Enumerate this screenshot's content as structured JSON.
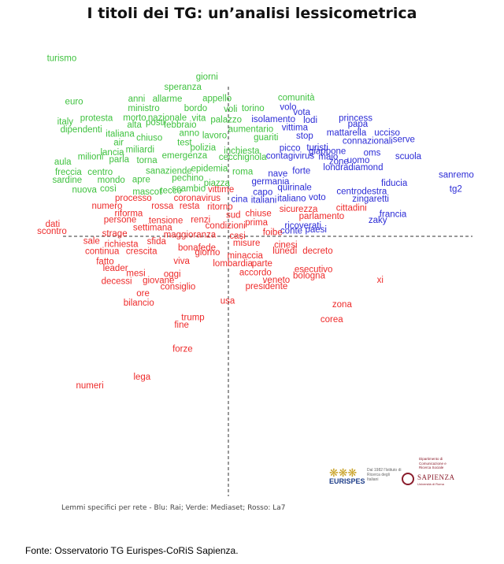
{
  "title": "I titoli dei TG: un’analisi lessicometrica",
  "note": "Lemmi specifici per rete - Blu: Rai; Verde: Mediaset; Rosso: La7",
  "source": "Fonte: Osservatorio TG Eurispes-CoRiS Sapienza.",
  "colors": {
    "Rai": "#2b2bd6",
    "Mediaset": "#3fc23f",
    "La7": "#ee2a2a",
    "axis": "#333333"
  },
  "logos": {
    "eurispes": {
      "mark": "❋❋❋",
      "name": "EURISPES",
      "tagline": "Dal 1982 l'Istituto di Ricerca degli Italiani"
    },
    "sapienza": {
      "department": "Dipartimento di Comunicazione e Ricerca Sociale",
      "name": "SAPIENZA",
      "subtitle": "Università di Roma"
    }
  },
  "chart_data": {
    "type": "scatter",
    "title": "I titoli dei TG: un’analisi lessicometrica",
    "xlabel": "",
    "ylabel": "",
    "xlim": [
      -100,
      100
    ],
    "ylim": [
      -100,
      100
    ],
    "axes": "crossing dashed lines at origin",
    "grid": false,
    "series": [
      {
        "name": "Mediaset",
        "color": "#3fc23f",
        "points": [
          {
            "label": "turismo",
            "x": -67.7,
            "y": 83.6
          },
          {
            "label": "giorni",
            "x": -8.7,
            "y": 74.8
          },
          {
            "label": "speranza",
            "x": -18.5,
            "y": 69.9
          },
          {
            "label": "comunità",
            "x": 27.6,
            "y": 64.9
          },
          {
            "label": "euro",
            "x": -62.7,
            "y": 62.9
          },
          {
            "label": "anni",
            "x": -37.3,
            "y": 64.3
          },
          {
            "label": "allarme",
            "x": -24.8,
            "y": 64.2
          },
          {
            "label": "appello",
            "x": -4.6,
            "y": 64.4
          },
          {
            "label": "ministro",
            "x": -34.4,
            "y": 59.8
          },
          {
            "label": "bordo",
            "x": -13.3,
            "y": 59.7
          },
          {
            "label": "voli",
            "x": 0.9,
            "y": 59.4
          },
          {
            "label": "torino",
            "x": 10.0,
            "y": 59.7
          },
          {
            "label": "protesta",
            "x": -53.6,
            "y": 55.1
          },
          {
            "label": "morto",
            "x": -38.1,
            "y": 55.3
          },
          {
            "label": "nazionale",
            "x": -24.8,
            "y": 55.2
          },
          {
            "label": "vita",
            "x": -12.0,
            "y": 55.0
          },
          {
            "label": "palazzo",
            "x": -0.9,
            "y": 54.3
          },
          {
            "label": "italy",
            "x": -66.3,
            "y": 53.4
          },
          {
            "label": "alta",
            "x": -38.2,
            "y": 51.8
          },
          {
            "label": "posti",
            "x": -29.7,
            "y": 53.0
          },
          {
            "label": "febbraio",
            "x": -19.6,
            "y": 51.8
          },
          {
            "label": "aumentario",
            "x": 9.1,
            "y": 49.9
          },
          {
            "label": "dipendenti",
            "x": -59.8,
            "y": 49.6
          },
          {
            "label": "italiana",
            "x": -44.0,
            "y": 47.5
          },
          {
            "label": "chiuso",
            "x": -32.1,
            "y": 45.6
          },
          {
            "label": "anno",
            "x": -15.9,
            "y": 47.9
          },
          {
            "label": "lavoro",
            "x": -5.6,
            "y": 46.8
          },
          {
            "label": "guariti",
            "x": 15.3,
            "y": 45.8
          },
          {
            "label": "air",
            "x": -44.6,
            "y": 43.5
          },
          {
            "label": "test",
            "x": -17.8,
            "y": 43.5
          },
          {
            "label": "lancia",
            "x": -47.2,
            "y": 38.8
          },
          {
            "label": "miliardi",
            "x": -35.9,
            "y": 40.0
          },
          {
            "label": "polizia",
            "x": -10.3,
            "y": 41.0
          },
          {
            "label": "inchiesta",
            "x": 5.4,
            "y": 39.5
          },
          {
            "label": "milioni",
            "x": -56.0,
            "y": 36.7
          },
          {
            "label": "parla",
            "x": -44.4,
            "y": 35.4
          },
          {
            "label": "torna",
            "x": -33.1,
            "y": 35.0
          },
          {
            "label": "emergenza",
            "x": -17.8,
            "y": 37.2
          },
          {
            "label": "cecchignola",
            "x": 5.8,
            "y": 36.4
          },
          {
            "label": "aula",
            "x": -67.3,
            "y": 34.3
          },
          {
            "label": "epidemia",
            "x": -7.7,
            "y": 31.1
          },
          {
            "label": "freccia",
            "x": -65.0,
            "y": 29.3
          },
          {
            "label": "centro",
            "x": -52.1,
            "y": 29.4
          },
          {
            "label": "sanaziende",
            "x": -24.2,
            "y": 29.9
          },
          {
            "label": "roma",
            "x": 5.8,
            "y": 29.5
          },
          {
            "label": "sardine",
            "x": -65.5,
            "y": 25.6
          },
          {
            "label": "mondo",
            "x": -47.6,
            "y": 25.6
          },
          {
            "label": "apre",
            "x": -35.4,
            "y": 25.7
          },
          {
            "label": "pechino",
            "x": -16.5,
            "y": 26.5
          },
          {
            "label": "piazza",
            "x": -4.7,
            "y": 24.0
          },
          {
            "label": "nuova",
            "x": -58.5,
            "y": 20.9
          },
          {
            "label": "così",
            "x": -48.8,
            "y": 21.5
          },
          {
            "label": "scambio",
            "x": -16.1,
            "y": 21.4
          },
          {
            "label": "mascot",
            "x": -33.0,
            "y": 20.0
          },
          {
            "label": "tecco",
            "x": -23.3,
            "y": 20.5
          }
        ]
      },
      {
        "name": "Rai",
        "color": "#2b2bd6",
        "points": [
          {
            "label": "volo",
            "x": 24.3,
            "y": 60.4
          },
          {
            "label": "vota",
            "x": 29.8,
            "y": 57.9
          },
          {
            "label": "isolamento",
            "x": 18.3,
            "y": 54.5
          },
          {
            "label": "lodi",
            "x": 33.3,
            "y": 54.1
          },
          {
            "label": "princess",
            "x": 51.7,
            "y": 55.1
          },
          {
            "label": "papa",
            "x": 52.6,
            "y": 52.2
          },
          {
            "label": "vittima",
            "x": 27.0,
            "y": 50.5
          },
          {
            "label": "stop",
            "x": 31.0,
            "y": 46.6
          },
          {
            "label": "mattarella",
            "x": 48.0,
            "y": 48.2
          },
          {
            "label": "ucciso",
            "x": 64.5,
            "y": 48.2
          },
          {
            "label": "connazionali",
            "x": 56.6,
            "y": 44.2
          },
          {
            "label": "serve",
            "x": 71.3,
            "y": 44.9
          },
          {
            "label": "picco",
            "x": 25.0,
            "y": 40.7
          },
          {
            "label": "turisti",
            "x": 36.2,
            "y": 41.0
          },
          {
            "label": "giappone",
            "x": 40.2,
            "y": 39.2
          },
          {
            "label": "contagivirus",
            "x": 25.1,
            "y": 37.0
          },
          {
            "label": "maio",
            "x": 40.6,
            "y": 36.6
          },
          {
            "label": "oms",
            "x": 58.4,
            "y": 38.6
          },
          {
            "label": "scuola",
            "x": 73.1,
            "y": 36.9
          },
          {
            "label": "zone",
            "x": 44.9,
            "y": 34.4
          },
          {
            "label": "uomo",
            "x": 52.8,
            "y": 34.9
          },
          {
            "label": "londradiamond",
            "x": 50.7,
            "y": 31.5
          },
          {
            "label": "nave",
            "x": 20.1,
            "y": 28.6
          },
          {
            "label": "forte",
            "x": 29.7,
            "y": 29.8
          },
          {
            "label": "germania",
            "x": 17.1,
            "y": 24.9
          },
          {
            "label": "centrodestra",
            "x": 54.2,
            "y": 20.1
          },
          {
            "label": "fiducia",
            "x": 67.4,
            "y": 24.0
          },
          {
            "label": "sanremo",
            "x": 92.6,
            "y": 28.0
          },
          {
            "label": "tg2",
            "x": 92.4,
            "y": 21.2
          },
          {
            "label": "quirinale",
            "x": 26.9,
            "y": 21.9
          },
          {
            "label": "capo",
            "x": 14.0,
            "y": 19.8
          },
          {
            "label": "voto",
            "x": 36.1,
            "y": 17.3
          },
          {
            "label": "zingaretti",
            "x": 57.8,
            "y": 16.6
          },
          {
            "label": "cina",
            "x": 4.5,
            "y": 16.3
          },
          {
            "label": "italiani",
            "x": 14.4,
            "y": 15.9
          },
          {
            "label": "italiano",
            "x": 25.7,
            "y": 16.8
          },
          {
            "label": "francia",
            "x": 66.9,
            "y": 9.3
          },
          {
            "label": "zaky",
            "x": 60.7,
            "y": 6.3
          },
          {
            "label": "ricoverati",
            "x": 30.3,
            "y": 3.7
          },
          {
            "label": "conte",
            "x": 25.6,
            "y": 1.3
          },
          {
            "label": "paesi",
            "x": 35.6,
            "y": 1.9
          }
        ]
      },
      {
        "name": "La7",
        "color": "#ee2a2a",
        "points": [
          {
            "label": "vittime",
            "x": -3.0,
            "y": 21.1
          },
          {
            "label": "processo",
            "x": -38.6,
            "y": 16.9
          },
          {
            "label": "coronavirus",
            "x": -12.7,
            "y": 16.9
          },
          {
            "label": "numero",
            "x": -49.3,
            "y": 13.2
          },
          {
            "label": "rossa",
            "x": -26.8,
            "y": 13.2
          },
          {
            "label": "resta",
            "x": -15.8,
            "y": 13.2
          },
          {
            "label": "ritorno",
            "x": -3.4,
            "y": 12.8
          },
          {
            "label": "sicurezza",
            "x": 28.5,
            "y": 11.6
          },
          {
            "label": "cittadini",
            "x": 50.0,
            "y": 12.3
          },
          {
            "label": "riforma",
            "x": -40.5,
            "y": 9.5
          },
          {
            "label": "chiuse",
            "x": 12.2,
            "y": 9.5
          },
          {
            "label": "sud",
            "x": 2.0,
            "y": 8.8
          },
          {
            "label": "parlamento",
            "x": 37.9,
            "y": 8.2
          },
          {
            "label": "persone",
            "x": -44.0,
            "y": 6.5
          },
          {
            "label": "tensione",
            "x": -25.4,
            "y": 6.2
          },
          {
            "label": "renzi",
            "x": -11.3,
            "y": 6.6
          },
          {
            "label": "prima",
            "x": 11.4,
            "y": 5.3
          },
          {
            "label": "dati",
            "x": -71.4,
            "y": 4.6
          },
          {
            "label": "condizioni",
            "x": -1.2,
            "y": 3.8
          },
          {
            "label": "settimana",
            "x": -30.8,
            "y": 2.8
          },
          {
            "label": "scontro",
            "x": -71.7,
            "y": 1.1
          },
          {
            "label": "strage",
            "x": -46.2,
            "y": 0.0
          },
          {
            "label": "maggioranza",
            "x": -15.7,
            "y": -0.6
          },
          {
            "label": "foibe",
            "x": 18.0,
            "y": 0.5
          },
          {
            "label": "casi",
            "x": 3.7,
            "y": -1.1
          },
          {
            "label": "sale",
            "x": -55.6,
            "y": -3.5
          },
          {
            "label": "richiesta",
            "x": -43.5,
            "y": -5.1
          },
          {
            "label": "sfida",
            "x": -29.2,
            "y": -3.8
          },
          {
            "label": "misure",
            "x": 7.4,
            "y": -4.6
          },
          {
            "label": "cinesi",
            "x": 23.3,
            "y": -5.5
          },
          {
            "label": "continua",
            "x": -51.3,
            "y": -8.5
          },
          {
            "label": "crescita",
            "x": -35.3,
            "y": -8.5
          },
          {
            "label": "bonafede",
            "x": -12.8,
            "y": -6.7
          },
          {
            "label": "giorno",
            "x": -8.5,
            "y": -9.0
          },
          {
            "label": "lunedì",
            "x": 23.0,
            "y": -8.2
          },
          {
            "label": "decreto",
            "x": 36.3,
            "y": -8.2
          },
          {
            "label": "minaccia",
            "x": 6.8,
            "y": -10.5
          },
          {
            "label": "fatto",
            "x": -50.1,
            "y": -13.4
          },
          {
            "label": "viva",
            "x": -19.0,
            "y": -13.1
          },
          {
            "label": "lombardia",
            "x": 1.8,
            "y": -14.2
          },
          {
            "label": "parte",
            "x": 13.7,
            "y": -14.3
          },
          {
            "label": "leader",
            "x": -45.9,
            "y": -16.5
          },
          {
            "label": "mesi",
            "x": -37.6,
            "y": -19.0
          },
          {
            "label": "oggi",
            "x": -22.8,
            "y": -19.3
          },
          {
            "label": "accordo",
            "x": 11.0,
            "y": -18.7
          },
          {
            "label": "esecutivo",
            "x": 34.6,
            "y": -17.1
          },
          {
            "label": "bologna",
            "x": 32.8,
            "y": -20.2
          },
          {
            "label": "xi",
            "x": 61.7,
            "y": -22.2
          },
          {
            "label": "decessi",
            "x": -45.4,
            "y": -22.8
          },
          {
            "label": "giovane",
            "x": -28.4,
            "y": -22.3
          },
          {
            "label": "veneto",
            "x": 19.5,
            "y": -22.1
          },
          {
            "label": "consiglio",
            "x": -20.5,
            "y": -25.4
          },
          {
            "label": "presidente",
            "x": 15.5,
            "y": -25.1
          },
          {
            "label": "ore",
            "x": -34.7,
            "y": -28.6
          },
          {
            "label": "usa",
            "x": -0.3,
            "y": -32.2
          },
          {
            "label": "bilancio",
            "x": -36.4,
            "y": -33.0
          },
          {
            "label": "zona",
            "x": 46.2,
            "y": -33.8
          },
          {
            "label": "trump",
            "x": -14.4,
            "y": -40.0
          },
          {
            "label": "corea",
            "x": 42.0,
            "y": -40.9
          },
          {
            "label": "fine",
            "x": -19.0,
            "y": -43.7
          },
          {
            "label": "forze",
            "x": -18.6,
            "y": -55.1
          },
          {
            "label": "lega",
            "x": -35.1,
            "y": -68.5
          },
          {
            "label": "numeri",
            "x": -56.3,
            "y": -72.6
          }
        ]
      }
    ]
  }
}
